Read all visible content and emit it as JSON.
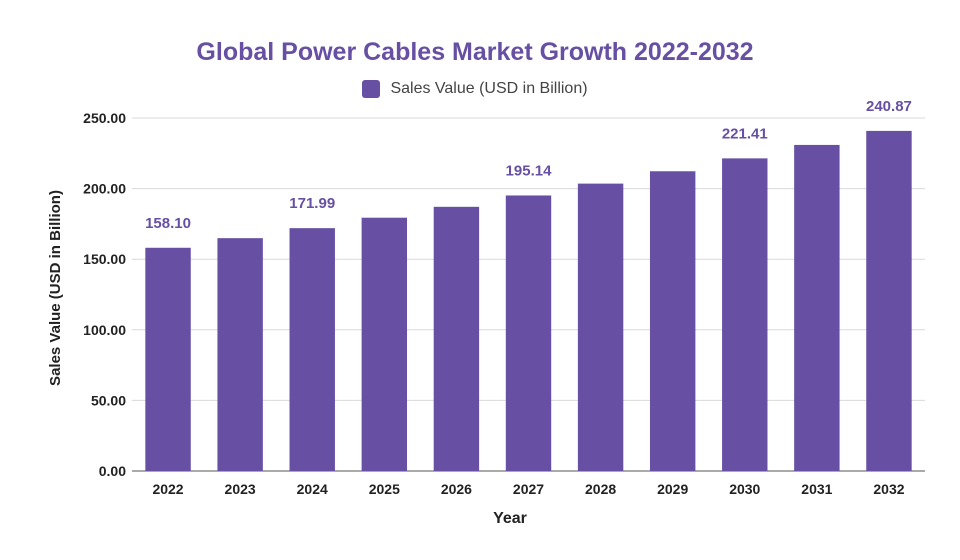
{
  "chart_data": {
    "type": "bar",
    "title": "Global Power Cables Market Growth 2022-2032",
    "xlabel": "Year",
    "ylabel": "Sales Value (USD in Billion)",
    "categories": [
      "2022",
      "2023",
      "2024",
      "2025",
      "2026",
      "2027",
      "2028",
      "2029",
      "2030",
      "2031",
      "2032"
    ],
    "series": [
      {
        "name": "Sales Value (USD in Billion)",
        "values": [
          158.1,
          164.9,
          171.99,
          179.39,
          187.1,
          195.14,
          203.53,
          212.28,
          221.41,
          230.93,
          240.87
        ],
        "data_labels": [
          "158.10",
          "",
          "171.99",
          "",
          "",
          "195.14",
          "",
          "",
          "221.41",
          "",
          "240.87"
        ]
      }
    ],
    "yticks": [
      "0.00",
      "50.00",
      "100.00",
      "150.00",
      "200.00",
      "250.00"
    ],
    "ylim": [
      0,
      250
    ],
    "grid": true,
    "legend": "top-center",
    "colors": {
      "bar": "#6750a4",
      "title": "#6750a4",
      "label": "#6750a4",
      "grid": "#d9d9d9"
    }
  }
}
